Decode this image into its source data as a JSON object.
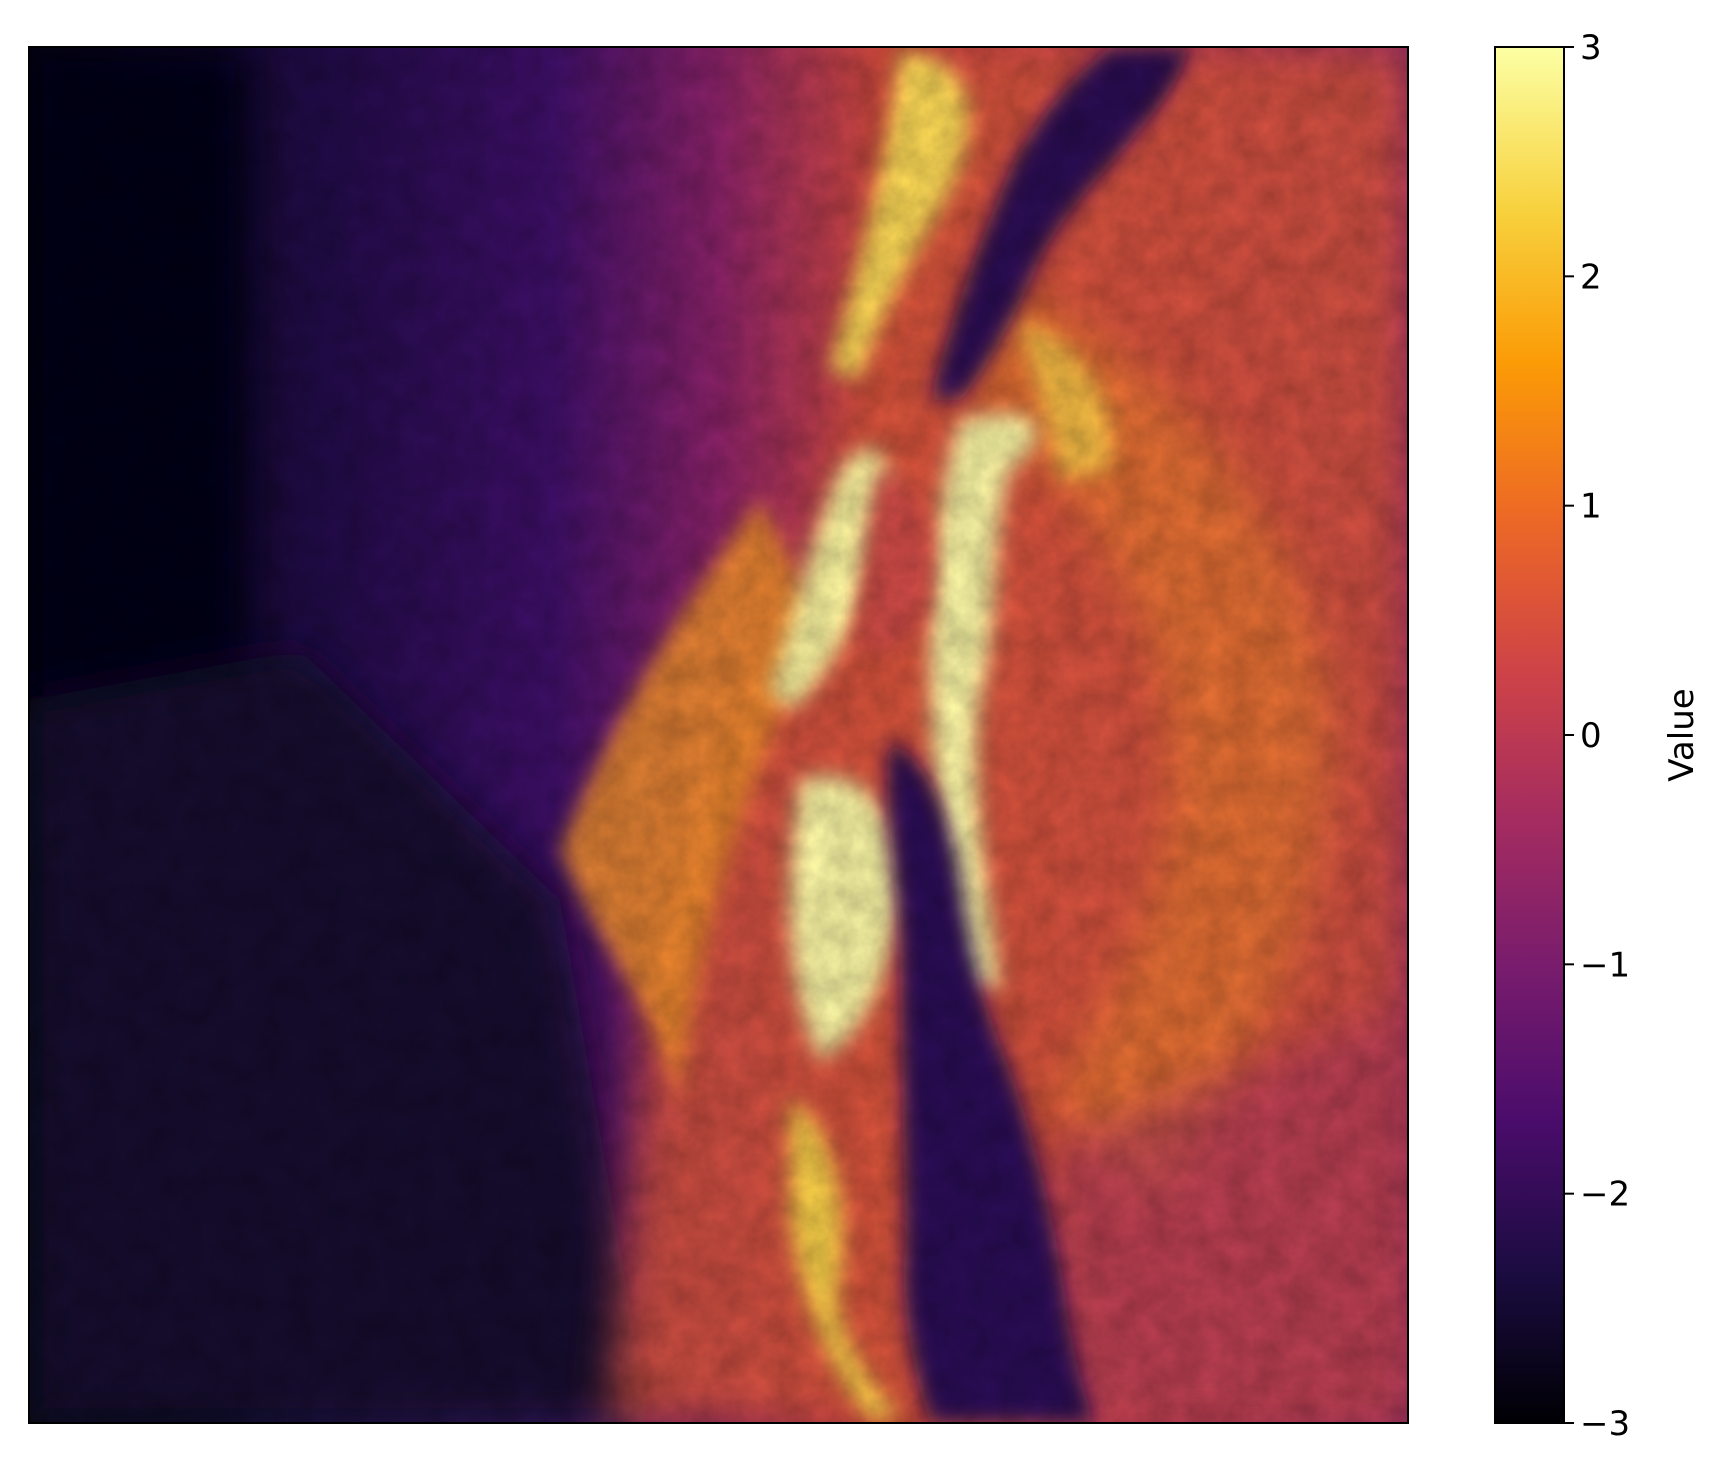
{
  "chart_data": {
    "type": "heatmap",
    "title": "",
    "xlabel": "",
    "ylabel": "",
    "x_ticks": [],
    "y_ticks": [],
    "colormap": "inferno",
    "colormap_stops": [
      "#000004",
      "#1b0c41",
      "#4a0c6b",
      "#781c6d",
      "#a52c60",
      "#cf4446",
      "#ed6925",
      "#fb9b06",
      "#f7d13d",
      "#fcffa4"
    ],
    "colorbar": {
      "label": "Value",
      "range": [
        -3,
        3
      ],
      "ticks": [
        3,
        2,
        1,
        0,
        -1,
        -2,
        -3
      ],
      "tick_labels": [
        "3",
        "2",
        "1",
        "0",
        "−1",
        "−2",
        "−3"
      ]
    },
    "description_regions": {
      "low_value_regions": [
        "left third of field",
        "lower-center elongated basin"
      ],
      "high_value_regions": [
        "central north-south ridge band",
        "scattered bright patches along ridge flanks"
      ]
    }
  }
}
